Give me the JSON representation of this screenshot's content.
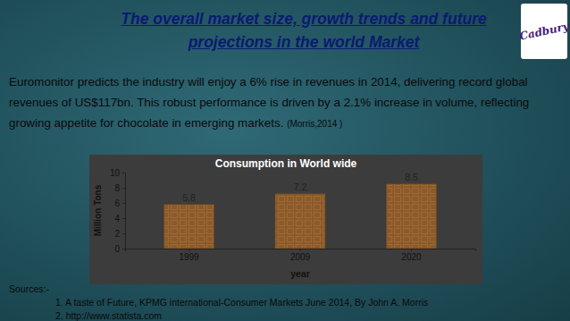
{
  "slide": {
    "title": "The overall market size, growth trends and future projections in the world Market",
    "logo": "Cadbury",
    "text": "Euromonitor predicts the industry will enjoy a 6% rise in revenues in 2014, delivering record global revenues of US$117bn. This robust performance is driven by a 2.1% increase in volume, reflecting growing appetite for chocolate in emerging markets.",
    "citation": "(Morris,2014 )",
    "sources_label": "Sources:-",
    "sources": [
      "1. A taste of Future, KPMG international-Consumer Markets June 2014, By John A. Morris",
      "2. http://www.statista.com"
    ]
  },
  "chart_data": {
    "type": "bar",
    "title": "Consumption in World wide",
    "x_label": "year",
    "y_label": "Million Tons",
    "categories": [
      "1999",
      "2009",
      "2020"
    ],
    "values": [
      5.8,
      7.2,
      8.5
    ],
    "color": "#8b5a2b",
    "ylim": [
      0,
      10
    ],
    "yticks": [
      0,
      2,
      4,
      6,
      8,
      10
    ],
    "grid": false,
    "data_labels": true
  }
}
